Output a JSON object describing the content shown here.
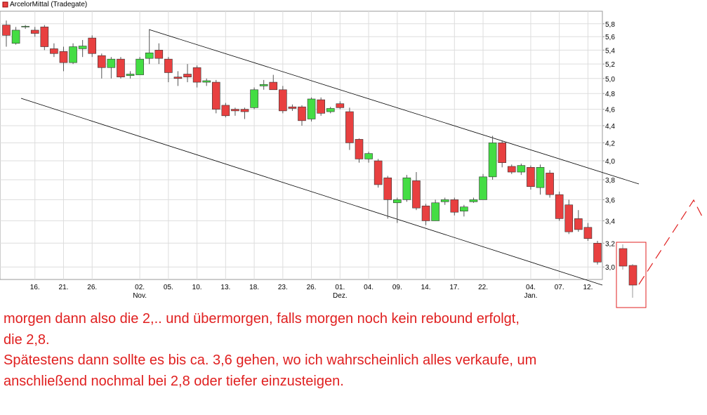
{
  "chart_data": {
    "type": "candlestick",
    "legend_label": "ArcelorMittal (Tradegate)",
    "log_y": true,
    "grid": true,
    "up_color": "#44dd44",
    "down_color": "#e84040",
    "ylim": [
      2.9,
      6.0
    ],
    "yticks": [
      {
        "value": 3.0,
        "label": "3,0"
      },
      {
        "value": 3.2,
        "label": "3,2"
      },
      {
        "value": 3.4,
        "label": "3,4"
      },
      {
        "value": 3.6,
        "label": "3,6"
      },
      {
        "value": 3.8,
        "label": "3,8"
      },
      {
        "value": 4.0,
        "label": "4,0"
      },
      {
        "value": 4.2,
        "label": "4,2"
      },
      {
        "value": 4.4,
        "label": "4,4"
      },
      {
        "value": 4.6,
        "label": "4,6"
      },
      {
        "value": 4.8,
        "label": "4,8"
      },
      {
        "value": 5.0,
        "label": "5,0"
      },
      {
        "value": 5.2,
        "label": "5,2"
      },
      {
        "value": 5.4,
        "label": "5,4"
      },
      {
        "value": 5.6,
        "label": "5,6"
      },
      {
        "value": 5.8,
        "label": "5,8"
      }
    ],
    "categories": [
      null,
      null,
      null,
      "16.",
      null,
      null,
      "21.",
      null,
      null,
      "26.",
      null,
      null,
      null,
      null,
      "02.",
      null,
      null,
      "05.",
      null,
      null,
      "10.",
      null,
      null,
      "13.",
      null,
      null,
      "18.",
      null,
      null,
      "23.",
      null,
      null,
      "26.",
      null,
      null,
      "01.",
      null,
      null,
      "04.",
      null,
      null,
      "09.",
      null,
      null,
      "14.",
      null,
      null,
      "17.",
      null,
      null,
      "22.",
      null,
      null,
      null,
      null,
      "04.",
      null,
      null,
      "07.",
      null,
      null,
      "12.",
      null
    ],
    "months": [
      null,
      null,
      null,
      null,
      null,
      null,
      null,
      null,
      null,
      null,
      null,
      null,
      null,
      null,
      "Nov.",
      null,
      null,
      null,
      null,
      null,
      null,
      null,
      null,
      null,
      null,
      null,
      null,
      null,
      null,
      null,
      null,
      null,
      null,
      null,
      null,
      "Dez.",
      null,
      null,
      null,
      null,
      null,
      null,
      null,
      null,
      null,
      null,
      null,
      null,
      null,
      null,
      null,
      null,
      null,
      null,
      null,
      "Jan.",
      null,
      null,
      null,
      null,
      null,
      null,
      null
    ],
    "open": [
      5.78,
      5.5,
      5.75,
      5.7,
      5.75,
      5.42,
      5.38,
      5.22,
      5.42,
      5.58,
      5.32,
      5.15,
      5.27,
      5.04,
      5.05,
      5.28,
      5.4,
      5.27,
      5.02,
      5.06,
      5.15,
      4.95,
      4.95,
      4.65,
      4.6,
      4.6,
      4.62,
      4.9,
      4.95,
      4.85,
      4.63,
      4.63,
      4.48,
      4.72,
      4.57,
      4.67,
      4.57,
      4.24,
      4.02,
      4.0,
      3.82,
      3.57,
      3.6,
      3.79,
      3.54,
      3.4,
      3.58,
      3.6,
      3.49,
      3.58,
      3.6,
      3.83,
      4.2,
      3.94,
      3.88,
      3.93,
      3.72,
      3.87,
      3.65,
      3.55,
      3.42,
      3.34,
      3.2
    ],
    "high": [
      5.85,
      5.75,
      5.78,
      5.75,
      5.78,
      5.5,
      5.45,
      5.5,
      5.55,
      5.62,
      5.35,
      5.3,
      5.3,
      5.1,
      5.3,
      5.7,
      5.5,
      5.3,
      5.1,
      5.2,
      5.18,
      5.0,
      4.98,
      4.68,
      4.62,
      4.62,
      4.88,
      4.98,
      5.05,
      4.9,
      4.66,
      4.65,
      4.75,
      4.75,
      4.63,
      4.7,
      4.62,
      4.25,
      4.1,
      4.02,
      3.84,
      3.62,
      3.85,
      3.88,
      3.56,
      3.6,
      3.62,
      3.62,
      3.55,
      3.62,
      3.86,
      4.28,
      4.22,
      3.96,
      3.97,
      3.95,
      3.96,
      3.9,
      3.68,
      3.6,
      3.5,
      3.38,
      3.22
    ],
    "low": [
      5.45,
      5.48,
      5.72,
      5.6,
      5.4,
      5.3,
      5.1,
      5.2,
      5.3,
      5.3,
      5.0,
      5.0,
      5.0,
      5.0,
      5.05,
      5.2,
      5.2,
      4.95,
      4.9,
      4.95,
      4.88,
      4.9,
      4.55,
      4.5,
      4.52,
      4.48,
      4.6,
      4.85,
      4.85,
      4.55,
      4.58,
      4.4,
      4.45,
      4.52,
      4.55,
      4.6,
      4.12,
      3.98,
      3.98,
      3.72,
      3.42,
      3.38,
      3.58,
      3.5,
      3.36,
      3.4,
      3.55,
      3.45,
      3.44,
      3.57,
      3.6,
      3.8,
      3.93,
      3.86,
      3.85,
      3.7,
      3.65,
      3.62,
      3.4,
      3.28,
      3.3,
      3.22,
      3.02
    ],
    "close": [
      5.62,
      5.7,
      5.76,
      5.65,
      5.45,
      5.35,
      5.22,
      5.45,
      5.46,
      5.35,
      5.15,
      5.27,
      5.02,
      5.06,
      5.27,
      5.36,
      5.28,
      5.08,
      5.0,
      5.02,
      4.95,
      4.97,
      4.6,
      4.52,
      4.58,
      4.57,
      4.85,
      4.92,
      4.85,
      4.58,
      4.61,
      4.46,
      4.73,
      4.55,
      4.61,
      4.62,
      4.2,
      4.02,
      4.08,
      3.75,
      3.6,
      3.6,
      3.82,
      3.52,
      3.4,
      3.57,
      3.6,
      3.48,
      3.53,
      3.6,
      3.83,
      4.2,
      3.98,
      3.88,
      3.95,
      3.73,
      3.93,
      3.65,
      3.42,
      3.3,
      3.32,
      3.24,
      3.04
    ]
  },
  "annotation": {
    "lines": [
      "morgen dann also die 2,.. und übermorgen, falls morgen noch kein rebound erfolgt,",
      "die 2,8.",
      "Spätestens dann sollte es bis ca. 3,6 gehen, wo ich wahrscheinlich alles verkaufe, um",
      "anschließend nochmal bei 2,8 oder tiefer einzusteigen."
    ]
  }
}
